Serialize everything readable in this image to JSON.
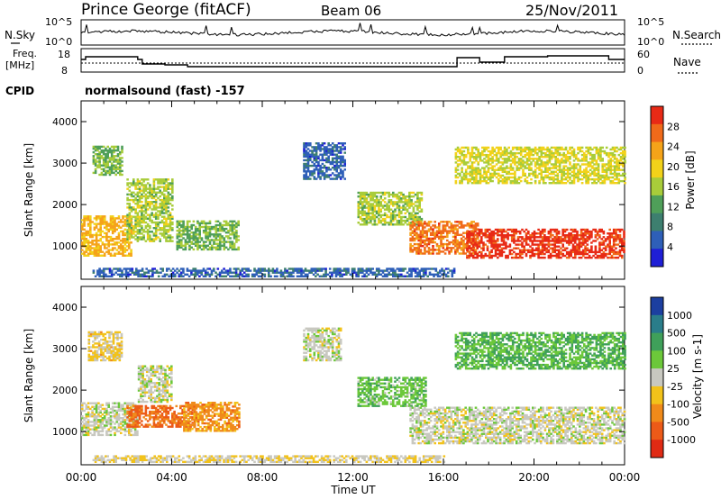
{
  "header": {
    "station": "Prince George (fitACF)",
    "beam": "Beam 06",
    "date": "25/Nov/2011"
  },
  "noise_panel": {
    "left_label": "N.Sky",
    "right_label": "N.Search",
    "left_ticks": [
      "10^5",
      "10^0"
    ],
    "right_ticks": [
      "10^5",
      "10^0"
    ]
  },
  "freq_panel": {
    "left_label_line1": "Freq.",
    "left_label_line2": "[MHz]",
    "right_label": "Nave",
    "left_ticks": [
      "18",
      "8"
    ],
    "right_ticks": [
      "60",
      "0"
    ]
  },
  "cpid": {
    "label": "CPID",
    "value": "normalsound (fast) -157"
  },
  "colors": {
    "power_scale": [
      "#1f1fd6",
      "#2e5fb8",
      "#3d7f6f",
      "#4f9f59",
      "#a8cc3a",
      "#f2d21a",
      "#f5a319",
      "#f06a1a",
      "#e82a16"
    ],
    "velocity_scale": [
      "#1c3fa0",
      "#2a7d8a",
      "#3fa05a",
      "#6cc83a",
      "#c8c8c0",
      "#f2c21a",
      "#f08a1a",
      "#ec5a18",
      "#e02a14"
    ]
  },
  "chart_data": [
    {
      "type": "heatmap",
      "panel": "power",
      "ylabel": "Slant Range [km]",
      "yticks": [
        "1000",
        "2000",
        "3000",
        "4000"
      ],
      "ylim": [
        200,
        4500
      ],
      "xlim": [
        0,
        24
      ],
      "colorbar": {
        "label": "Power [dB]",
        "ticks": [
          "4",
          "8",
          "12",
          "16",
          "20",
          "24",
          "28"
        ],
        "range": [
          0,
          32
        ]
      },
      "regions": [
        {
          "t": [
            0.0,
            2.2
          ],
          "range_km": [
            750,
            1700
          ],
          "value_db": 22
        },
        {
          "t": [
            0.5,
            1.8
          ],
          "range_km": [
            2700,
            3400
          ],
          "value_db": 14
        },
        {
          "t": [
            2.0,
            4.0
          ],
          "range_km": [
            1100,
            2600
          ],
          "value_db": 16
        },
        {
          "t": [
            4.2,
            6.9
          ],
          "range_km": [
            900,
            1600
          ],
          "value_db": 14
        },
        {
          "t": [
            9.8,
            11.6
          ],
          "range_km": [
            2600,
            3500
          ],
          "value_db": 6
        },
        {
          "t": [
            12.2,
            15.0
          ],
          "range_km": [
            1500,
            2300
          ],
          "value_db": 16
        },
        {
          "t": [
            14.5,
            17.5
          ],
          "range_km": [
            800,
            1600
          ],
          "value_db": 26
        },
        {
          "t": [
            17.0,
            24.0
          ],
          "range_km": [
            700,
            1400
          ],
          "value_db": 30
        },
        {
          "t": [
            16.5,
            24.0
          ],
          "range_km": [
            2500,
            3400
          ],
          "value_db": 18
        },
        {
          "t": [
            0.5,
            16.5
          ],
          "range_km": [
            250,
            450
          ],
          "value_db": 6
        }
      ]
    },
    {
      "type": "heatmap",
      "panel": "velocity",
      "ylabel": "Slant Range [km]",
      "yticks": [
        "1000",
        "2000",
        "3000",
        "4000"
      ],
      "ylim": [
        200,
        4500
      ],
      "xlim": [
        0,
        24
      ],
      "xlabel": "Time UT",
      "xticks": [
        "00:00",
        "04:00",
        "08:00",
        "12:00",
        "16:00",
        "20:00",
        "00:00"
      ],
      "colorbar": {
        "label": "Velocity [m s-1]",
        "ticks": [
          "1000",
          "500",
          "100",
          "25",
          "-25",
          "-100",
          "-500",
          "-1000"
        ],
        "range": [
          -1200,
          1200
        ]
      },
      "regions": [
        {
          "t": [
            0.0,
            2.5
          ],
          "range_km": [
            900,
            1700
          ],
          "value": 0
        },
        {
          "t": [
            2.0,
            5.0
          ],
          "range_km": [
            1100,
            1600
          ],
          "value": -700
        },
        {
          "t": [
            4.5,
            7.0
          ],
          "range_km": [
            1000,
            1700
          ],
          "value": -500
        },
        {
          "t": [
            2.5,
            4.0
          ],
          "range_km": [
            1700,
            2600
          ],
          "value": 0
        },
        {
          "t": [
            0.3,
            1.8
          ],
          "range_km": [
            2700,
            3400
          ],
          "value": -200
        },
        {
          "t": [
            9.8,
            11.5
          ],
          "range_km": [
            2700,
            3500
          ],
          "value": 0
        },
        {
          "t": [
            12.2,
            15.2
          ],
          "range_km": [
            1600,
            2300
          ],
          "value": 300
        },
        {
          "t": [
            14.5,
            24.0
          ],
          "range_km": [
            700,
            1600
          ],
          "value": 0
        },
        {
          "t": [
            16.5,
            24.0
          ],
          "range_km": [
            2500,
            3400
          ],
          "value": 400
        },
        {
          "t": [
            0.5,
            16.0
          ],
          "range_km": [
            250,
            420
          ],
          "value": -100
        }
      ]
    }
  ]
}
